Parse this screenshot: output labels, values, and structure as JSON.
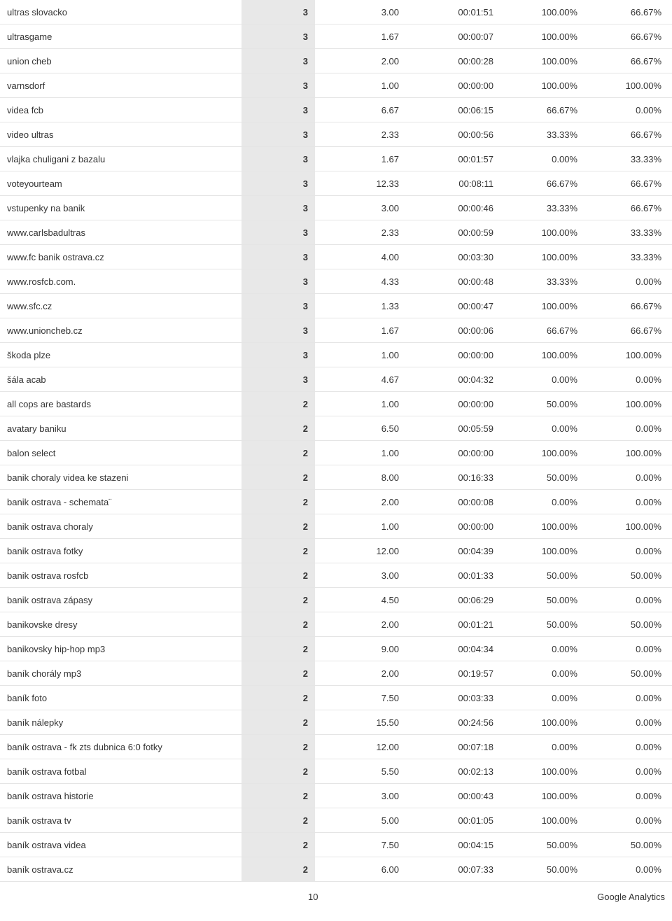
{
  "table": {
    "columns": {
      "keyword_width": 345,
      "visits_width": 105,
      "pages_width": 130,
      "time_width": 135,
      "newv_width": 120,
      "bounce_width": 120,
      "visits_bg": "#e8e8e8",
      "border_color": "#e5e5e5",
      "font_size": 13
    },
    "rows": [
      {
        "keyword": "ultras slovacko",
        "visits": "3",
        "pages": "3.00",
        "time": "00:01:51",
        "newv": "100.00%",
        "bounce": "66.67%"
      },
      {
        "keyword": "ultrasgame",
        "visits": "3",
        "pages": "1.67",
        "time": "00:00:07",
        "newv": "100.00%",
        "bounce": "66.67%"
      },
      {
        "keyword": "union cheb",
        "visits": "3",
        "pages": "2.00",
        "time": "00:00:28",
        "newv": "100.00%",
        "bounce": "66.67%"
      },
      {
        "keyword": "varnsdorf",
        "visits": "3",
        "pages": "1.00",
        "time": "00:00:00",
        "newv": "100.00%",
        "bounce": "100.00%"
      },
      {
        "keyword": "videa fcb",
        "visits": "3",
        "pages": "6.67",
        "time": "00:06:15",
        "newv": "66.67%",
        "bounce": "0.00%"
      },
      {
        "keyword": "video ultras",
        "visits": "3",
        "pages": "2.33",
        "time": "00:00:56",
        "newv": "33.33%",
        "bounce": "66.67%"
      },
      {
        "keyword": "vlajka chuligani z bazalu",
        "visits": "3",
        "pages": "1.67",
        "time": "00:01:57",
        "newv": "0.00%",
        "bounce": "33.33%"
      },
      {
        "keyword": "voteyourteam",
        "visits": "3",
        "pages": "12.33",
        "time": "00:08:11",
        "newv": "66.67%",
        "bounce": "66.67%"
      },
      {
        "keyword": "vstupenky na banik",
        "visits": "3",
        "pages": "3.00",
        "time": "00:00:46",
        "newv": "33.33%",
        "bounce": "66.67%"
      },
      {
        "keyword": "www.carlsbadultras",
        "visits": "3",
        "pages": "2.33",
        "time": "00:00:59",
        "newv": "100.00%",
        "bounce": "33.33%"
      },
      {
        "keyword": "www.fc banik ostrava.cz",
        "visits": "3",
        "pages": "4.00",
        "time": "00:03:30",
        "newv": "100.00%",
        "bounce": "33.33%"
      },
      {
        "keyword": "www.rosfcb.com.",
        "visits": "3",
        "pages": "4.33",
        "time": "00:00:48",
        "newv": "33.33%",
        "bounce": "0.00%"
      },
      {
        "keyword": "www.sfc.cz",
        "visits": "3",
        "pages": "1.33",
        "time": "00:00:47",
        "newv": "100.00%",
        "bounce": "66.67%"
      },
      {
        "keyword": "www.unioncheb.cz",
        "visits": "3",
        "pages": "1.67",
        "time": "00:00:06",
        "newv": "66.67%",
        "bounce": "66.67%"
      },
      {
        "keyword": "škoda plze",
        "visits": "3",
        "pages": "1.00",
        "time": "00:00:00",
        "newv": "100.00%",
        "bounce": "100.00%"
      },
      {
        "keyword": "šála acab",
        "visits": "3",
        "pages": "4.67",
        "time": "00:04:32",
        "newv": "0.00%",
        "bounce": "0.00%"
      },
      {
        "keyword": "all cops are bastards",
        "visits": "2",
        "pages": "1.00",
        "time": "00:00:00",
        "newv": "50.00%",
        "bounce": "100.00%"
      },
      {
        "keyword": "avatary baniku",
        "visits": "2",
        "pages": "6.50",
        "time": "00:05:59",
        "newv": "0.00%",
        "bounce": "0.00%"
      },
      {
        "keyword": "balon select",
        "visits": "2",
        "pages": "1.00",
        "time": "00:00:00",
        "newv": "100.00%",
        "bounce": "100.00%"
      },
      {
        "keyword": "banik choraly videa ke stazeni",
        "visits": "2",
        "pages": "8.00",
        "time": "00:16:33",
        "newv": "50.00%",
        "bounce": "0.00%"
      },
      {
        "keyword": "banik ostrava - schemata¨",
        "visits": "2",
        "pages": "2.00",
        "time": "00:00:08",
        "newv": "0.00%",
        "bounce": "0.00%"
      },
      {
        "keyword": "banik ostrava choraly",
        "visits": "2",
        "pages": "1.00",
        "time": "00:00:00",
        "newv": "100.00%",
        "bounce": "100.00%"
      },
      {
        "keyword": "banik ostrava fotky",
        "visits": "2",
        "pages": "12.00",
        "time": "00:04:39",
        "newv": "100.00%",
        "bounce": "0.00%"
      },
      {
        "keyword": "banik ostrava rosfcb",
        "visits": "2",
        "pages": "3.00",
        "time": "00:01:33",
        "newv": "50.00%",
        "bounce": "50.00%"
      },
      {
        "keyword": "banik ostrava zápasy",
        "visits": "2",
        "pages": "4.50",
        "time": "00:06:29",
        "newv": "50.00%",
        "bounce": "0.00%"
      },
      {
        "keyword": "banikovske dresy",
        "visits": "2",
        "pages": "2.00",
        "time": "00:01:21",
        "newv": "50.00%",
        "bounce": "50.00%"
      },
      {
        "keyword": "banikovsky hip-hop mp3",
        "visits": "2",
        "pages": "9.00",
        "time": "00:04:34",
        "newv": "0.00%",
        "bounce": "0.00%"
      },
      {
        "keyword": "baník chorály mp3",
        "visits": "2",
        "pages": "2.00",
        "time": "00:19:57",
        "newv": "0.00%",
        "bounce": "50.00%"
      },
      {
        "keyword": "baník foto",
        "visits": "2",
        "pages": "7.50",
        "time": "00:03:33",
        "newv": "0.00%",
        "bounce": "0.00%"
      },
      {
        "keyword": "baník nálepky",
        "visits": "2",
        "pages": "15.50",
        "time": "00:24:56",
        "newv": "100.00%",
        "bounce": "0.00%"
      },
      {
        "keyword": "baník ostrava - fk zts dubnica 6:0 fotky",
        "visits": "2",
        "pages": "12.00",
        "time": "00:07:18",
        "newv": "0.00%",
        "bounce": "0.00%"
      },
      {
        "keyword": "baník ostrava fotbal",
        "visits": "2",
        "pages": "5.50",
        "time": "00:02:13",
        "newv": "100.00%",
        "bounce": "0.00%"
      },
      {
        "keyword": "baník ostrava historie",
        "visits": "2",
        "pages": "3.00",
        "time": "00:00:43",
        "newv": "100.00%",
        "bounce": "0.00%"
      },
      {
        "keyword": "baník ostrava tv",
        "visits": "2",
        "pages": "5.00",
        "time": "00:01:05",
        "newv": "100.00%",
        "bounce": "0.00%"
      },
      {
        "keyword": "baník ostrava videa",
        "visits": "2",
        "pages": "7.50",
        "time": "00:04:15",
        "newv": "50.00%",
        "bounce": "50.00%"
      },
      {
        "keyword": "baník ostrava.cz",
        "visits": "2",
        "pages": "6.00",
        "time": "00:07:33",
        "newv": "50.00%",
        "bounce": "0.00%"
      }
    ]
  },
  "footer": {
    "page_number": "10",
    "brand": "Google Analytics"
  }
}
